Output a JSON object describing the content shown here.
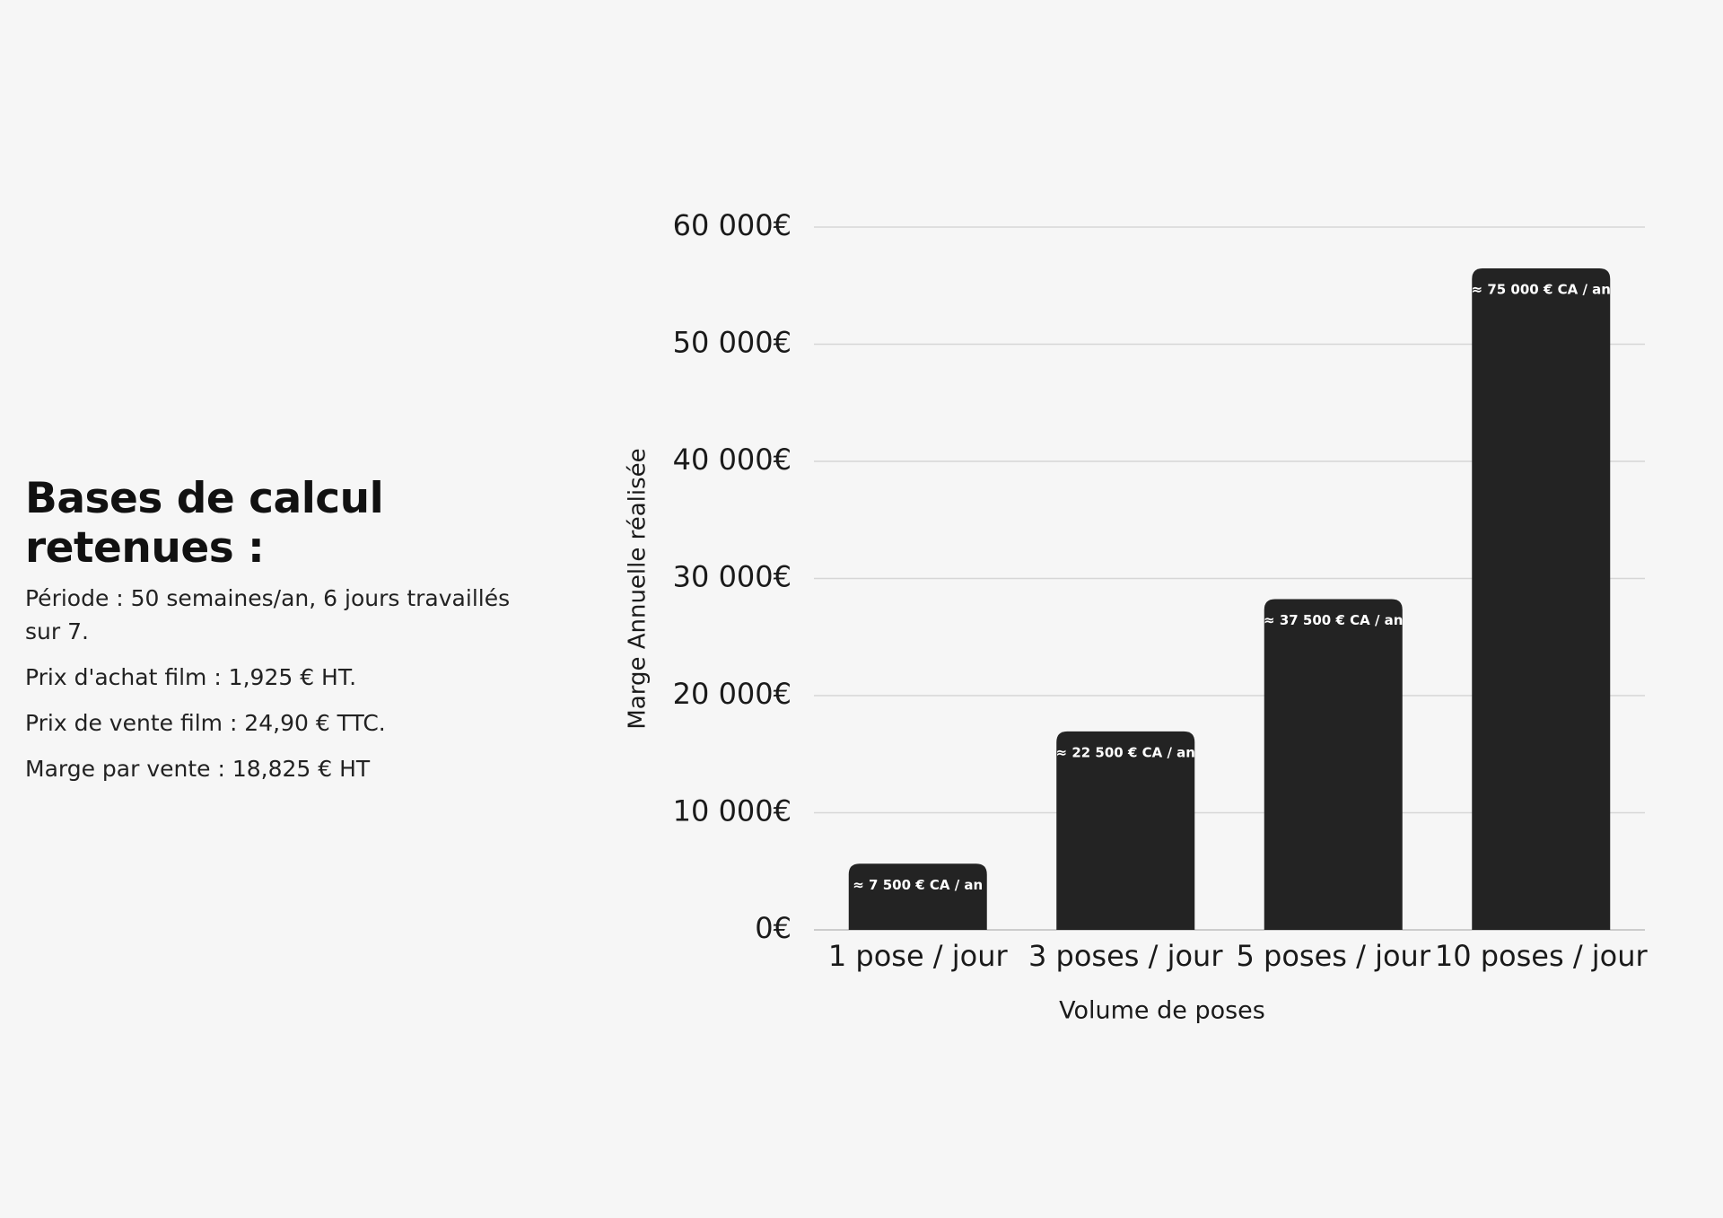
{
  "info": {
    "title": "Bases de calcul retenues :",
    "lines": [
      "Période : 50 semaines/an, 6 jours travaillés sur 7.",
      "Prix d'achat film : 1,925 € HT.",
      "Prix de vente film : 24,90 € TTC.",
      "Marge par vente : 18,825 € HT"
    ]
  },
  "chart_data": {
    "type": "bar",
    "x_label": "Volume de poses",
    "y_label": "Marge Annuelle réalisée",
    "categories": [
      "1 pose / jour",
      "3 poses / jour",
      "5 poses / jour",
      "10 poses / jour"
    ],
    "values": [
      5647.5,
      16942.5,
      28237.5,
      56475
    ],
    "bar_labels": [
      "≈ 7 500 € CA / an",
      "≈ 22 500 € CA / an",
      "≈ 37 500 € CA / an",
      "≈ 75 000 € CA / an"
    ],
    "color": "#232323",
    "ylim": [
      0,
      60000
    ],
    "yticks": [
      {
        "value": 0,
        "label": "0€"
      },
      {
        "value": 10000,
        "label": "10 000€"
      },
      {
        "value": 20000,
        "label": "20 000€"
      },
      {
        "value": 30000,
        "label": "30 000€"
      },
      {
        "value": 40000,
        "label": "40 000€"
      },
      {
        "value": 50000,
        "label": "50 000€"
      },
      {
        "value": 60000,
        "label": "60 000€"
      }
    ],
    "grid": true
  }
}
